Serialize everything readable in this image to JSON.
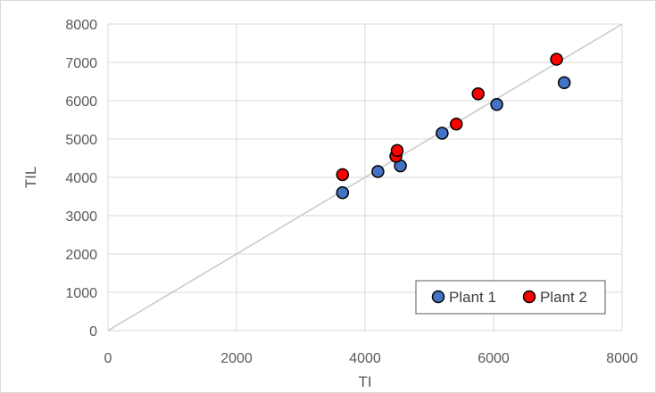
{
  "chart_data": {
    "type": "scatter",
    "title": "",
    "xlabel": "TI",
    "ylabel": "TIL",
    "xlim": [
      0,
      8000
    ],
    "ylim": [
      0,
      8000
    ],
    "xticks": [
      0,
      2000,
      4000,
      6000,
      8000
    ],
    "yticks": [
      0,
      1000,
      2000,
      3000,
      4000,
      5000,
      6000,
      7000,
      8000
    ],
    "grid": true,
    "legend_position": "bottom-right",
    "reference_line": {
      "x": [
        0,
        8000
      ],
      "y": [
        0,
        8000
      ]
    },
    "series": [
      {
        "name": "Plant 1",
        "color": "#4472C4",
        "points": [
          {
            "x": 3650,
            "y": 3600
          },
          {
            "x": 4200,
            "y": 4150
          },
          {
            "x": 4550,
            "y": 4300
          },
          {
            "x": 5200,
            "y": 5150
          },
          {
            "x": 6050,
            "y": 5900
          },
          {
            "x": 7100,
            "y": 6470
          }
        ]
      },
      {
        "name": "Plant 2",
        "color": "#FF0000",
        "points": [
          {
            "x": 3650,
            "y": 4070
          },
          {
            "x": 4480,
            "y": 4550
          },
          {
            "x": 4500,
            "y": 4700
          },
          {
            "x": 5420,
            "y": 5390
          },
          {
            "x": 5760,
            "y": 6180
          },
          {
            "x": 6980,
            "y": 7080
          }
        ]
      }
    ]
  }
}
